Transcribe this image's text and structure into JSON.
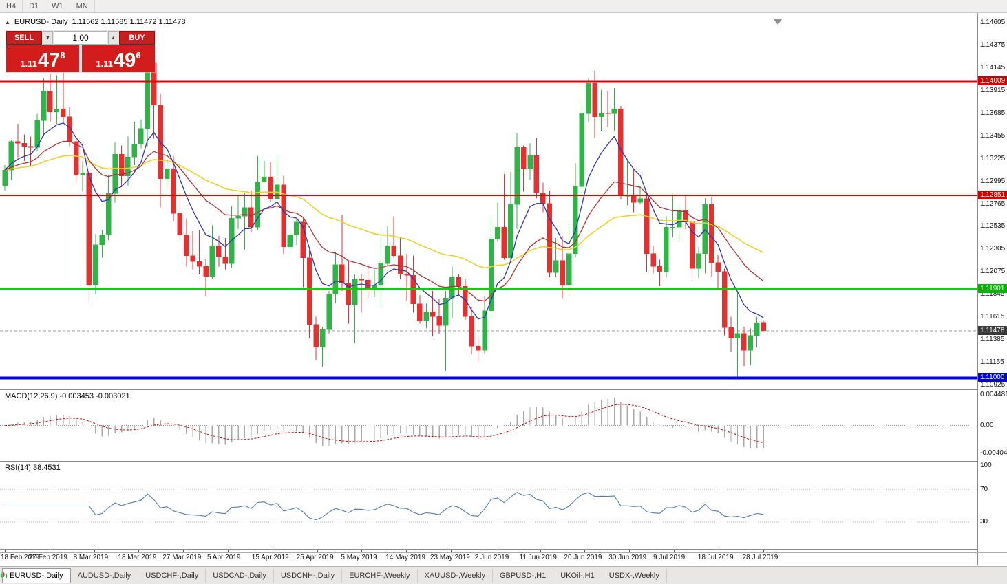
{
  "window": {
    "period_tabs": [
      "H4",
      "D1",
      "W1",
      "MN"
    ]
  },
  "header": {
    "marker": "▲",
    "symbol_label": "EURUSD-,Daily",
    "ohlc_text": "1.11562 1.11585 1.11472 1.11478"
  },
  "trade_panel": {
    "sell_label": "SELL",
    "buy_label": "BUY",
    "volume": "1.00",
    "down_arrow": "▼",
    "up_arrow": "▲",
    "sell_price": {
      "prefix": "1.11",
      "big": "47",
      "sup": "8"
    },
    "buy_price": {
      "prefix": "1.11",
      "big": "49",
      "sup": "6"
    }
  },
  "chart_data": {
    "type": "candlestick",
    "title": "EURUSD-,Daily",
    "x_labels": [
      "18 Feb 2019",
      "27 Feb 2019",
      "8 Mar 2019",
      "18 Mar 2019",
      "27 Mar 2019",
      "5 Apr 2019",
      "15 Apr 2019",
      "25 Apr 2019",
      "5 May 2019",
      "14 May 2019",
      "23 May 2019",
      "2 Jun 2019",
      "11 Jun 2019",
      "20 Jun 2019",
      "30 Jun 2019",
      "9 Jul 2019",
      "18 Jul 2019",
      "28 Jul 2019"
    ],
    "y_axis": {
      "labels": [
        "1.14605",
        "1.14375",
        "1.14145",
        "1.13915",
        "1.13685",
        "1.13455",
        "1.13225",
        "1.12995",
        "1.12765",
        "1.12535",
        "1.12305",
        "1.12075",
        "1.11845",
        "1.11615",
        "1.11385",
        "1.11155",
        "1.10925"
      ],
      "top_price": 1.14605,
      "bottom_price": 1.10925
    },
    "colors": {
      "up": "#2fb547",
      "down": "#e53030",
      "background": "#ffffff"
    },
    "candles": [
      [
        1.1295,
        1.1316,
        1.129,
        1.1311
      ],
      [
        1.1311,
        1.1341,
        1.1301,
        1.134
      ],
      [
        1.134,
        1.1358,
        1.1324,
        1.1338
      ],
      [
        1.1338,
        1.1347,
        1.132,
        1.1335
      ],
      [
        1.1335,
        1.1345,
        1.1315,
        1.1334
      ],
      [
        1.1334,
        1.1368,
        1.133,
        1.1361
      ],
      [
        1.1361,
        1.1404,
        1.1345,
        1.1391
      ],
      [
        1.1391,
        1.1408,
        1.136,
        1.137
      ],
      [
        1.137,
        1.1407,
        1.1358,
        1.1373
      ],
      [
        1.1373,
        1.1411,
        1.1358,
        1.1365
      ],
      [
        1.1365,
        1.1375,
        1.1335,
        1.134
      ],
      [
        1.134,
        1.1344,
        1.1298,
        1.1306
      ],
      [
        1.1306,
        1.132,
        1.1289,
        1.1308
      ],
      [
        1.1308,
        1.132,
        1.1176,
        1.1194
      ],
      [
        1.1194,
        1.1246,
        1.1185,
        1.1235
      ],
      [
        1.1235,
        1.125,
        1.1222,
        1.1245
      ],
      [
        1.1245,
        1.1306,
        1.124,
        1.1287
      ],
      [
        1.1287,
        1.1339,
        1.1278,
        1.1327
      ],
      [
        1.1327,
        1.1336,
        1.1294,
        1.1305
      ],
      [
        1.1305,
        1.1345,
        1.1295,
        1.1324
      ],
      [
        1.1324,
        1.136,
        1.1316,
        1.1337
      ],
      [
        1.1337,
        1.1362,
        1.1333,
        1.1353
      ],
      [
        1.1353,
        1.1448,
        1.1335,
        1.142
      ],
      [
        1.142,
        1.1438,
        1.1343,
        1.1377
      ],
      [
        1.1377,
        1.1389,
        1.1273,
        1.1302
      ],
      [
        1.1302,
        1.133,
        1.1293,
        1.1312
      ],
      [
        1.1312,
        1.1325,
        1.1259,
        1.1267
      ],
      [
        1.1267,
        1.1288,
        1.1241,
        1.1245
      ],
      [
        1.1245,
        1.1262,
        1.1213,
        1.1224
      ],
      [
        1.1224,
        1.1249,
        1.121,
        1.1218
      ],
      [
        1.1218,
        1.125,
        1.1205,
        1.1213
      ],
      [
        1.1213,
        1.1221,
        1.1183,
        1.1203
      ],
      [
        1.1203,
        1.1255,
        1.12,
        1.1234
      ],
      [
        1.1234,
        1.1244,
        1.1213,
        1.1223
      ],
      [
        1.1223,
        1.1242,
        1.121,
        1.1216
      ],
      [
        1.1216,
        1.1274,
        1.1212,
        1.1262
      ],
      [
        1.1262,
        1.1285,
        1.1251,
        1.1264
      ],
      [
        1.1264,
        1.1288,
        1.123,
        1.1273
      ],
      [
        1.1273,
        1.129,
        1.1248,
        1.1253
      ],
      [
        1.1253,
        1.1325,
        1.125,
        1.1299
      ],
      [
        1.1299,
        1.132,
        1.1298,
        1.1304
      ],
      [
        1.1304,
        1.1319,
        1.1279,
        1.1282
      ],
      [
        1.1282,
        1.1324,
        1.128,
        1.1296
      ],
      [
        1.1296,
        1.1305,
        1.1226,
        1.1233
      ],
      [
        1.1233,
        1.1252,
        1.1226,
        1.1245
      ],
      [
        1.1245,
        1.1262,
        1.1235,
        1.1258
      ],
      [
        1.1258,
        1.1262,
        1.1192,
        1.1222
      ],
      [
        1.1222,
        1.123,
        1.114,
        1.1154
      ],
      [
        1.1154,
        1.1162,
        1.1118,
        1.1131
      ],
      [
        1.1131,
        1.1152,
        1.1111,
        1.1149
      ],
      [
        1.1149,
        1.1188,
        1.1145,
        1.1185
      ],
      [
        1.1185,
        1.1228,
        1.1176,
        1.1215
      ],
      [
        1.1215,
        1.1265,
        1.1188,
        1.1196
      ],
      [
        1.1196,
        1.1219,
        1.1155,
        1.1174
      ],
      [
        1.1174,
        1.1205,
        1.1135,
        1.12
      ],
      [
        1.12,
        1.1205,
        1.1166,
        1.1199
      ],
      [
        1.1199,
        1.1215,
        1.118,
        1.119
      ],
      [
        1.119,
        1.121,
        1.1182,
        1.1194
      ],
      [
        1.1194,
        1.1251,
        1.1174,
        1.1216
      ],
      [
        1.1216,
        1.1254,
        1.1214,
        1.1234
      ],
      [
        1.1234,
        1.1264,
        1.1222,
        1.1224
      ],
      [
        1.1224,
        1.1243,
        1.12,
        1.1205
      ],
      [
        1.1205,
        1.1226,
        1.1178,
        1.1204
      ],
      [
        1.1204,
        1.1224,
        1.1166,
        1.1175
      ],
      [
        1.1175,
        1.1184,
        1.1155,
        1.1158
      ],
      [
        1.1158,
        1.1176,
        1.115,
        1.1167
      ],
      [
        1.1167,
        1.1188,
        1.1142,
        1.1162
      ],
      [
        1.1162,
        1.118,
        1.1145,
        1.1153
      ],
      [
        1.1153,
        1.1188,
        1.1107,
        1.1181
      ],
      [
        1.1181,
        1.1213,
        1.1161,
        1.1202
      ],
      [
        1.1202,
        1.1205,
        1.1184,
        1.1193
      ],
      [
        1.1193,
        1.12,
        1.1159,
        1.1162
      ],
      [
        1.1162,
        1.1172,
        1.1124,
        1.1132
      ],
      [
        1.1132,
        1.1142,
        1.1116,
        1.1128
      ],
      [
        1.1128,
        1.1183,
        1.1125,
        1.1168
      ],
      [
        1.1168,
        1.1263,
        1.116,
        1.1241
      ],
      [
        1.1241,
        1.1278,
        1.1238,
        1.1253
      ],
      [
        1.1253,
        1.1307,
        1.122,
        1.1222
      ],
      [
        1.1222,
        1.1309,
        1.1219,
        1.1276
      ],
      [
        1.1276,
        1.1348,
        1.1251,
        1.1334
      ],
      [
        1.1334,
        1.1336,
        1.1289,
        1.1312
      ],
      [
        1.1312,
        1.1338,
        1.1301,
        1.1326
      ],
      [
        1.1326,
        1.1344,
        1.1282,
        1.1288
      ],
      [
        1.1288,
        1.1298,
        1.1268,
        1.1277
      ],
      [
        1.1277,
        1.129,
        1.1202,
        1.1207
      ],
      [
        1.1207,
        1.1242,
        1.1202,
        1.1219
      ],
      [
        1.1219,
        1.1244,
        1.1181,
        1.1194
      ],
      [
        1.1194,
        1.1256,
        1.1187,
        1.1226
      ],
      [
        1.1226,
        1.1318,
        1.1222,
        1.1294
      ],
      [
        1.1294,
        1.1378,
        1.1285,
        1.1368
      ],
      [
        1.1368,
        1.1404,
        1.136,
        1.1399
      ],
      [
        1.1399,
        1.1412,
        1.1344,
        1.1365
      ],
      [
        1.1365,
        1.1392,
        1.135,
        1.1369
      ],
      [
        1.1369,
        1.1391,
        1.1355,
        1.1368
      ],
      [
        1.1368,
        1.1394,
        1.1351,
        1.1373
      ],
      [
        1.1373,
        1.1376,
        1.1281,
        1.1285
      ],
      [
        1.1285,
        1.1322,
        1.1275,
        1.1285
      ],
      [
        1.1285,
        1.1312,
        1.1268,
        1.1278
      ],
      [
        1.1278,
        1.1295,
        1.1277,
        1.1282
      ],
      [
        1.1282,
        1.1288,
        1.1207,
        1.1226
      ],
      [
        1.1226,
        1.1234,
        1.1206,
        1.1213
      ],
      [
        1.1213,
        1.122,
        1.1193,
        1.1208
      ],
      [
        1.1208,
        1.1264,
        1.1202,
        1.1253
      ],
      [
        1.1253,
        1.1286,
        1.1243,
        1.1253
      ],
      [
        1.1253,
        1.1275,
        1.1239,
        1.127
      ],
      [
        1.127,
        1.1285,
        1.1251,
        1.1258
      ],
      [
        1.1258,
        1.1262,
        1.1202,
        1.1211
      ],
      [
        1.1211,
        1.1233,
        1.1201,
        1.1226
      ],
      [
        1.1226,
        1.1282,
        1.1206,
        1.1276
      ],
      [
        1.1276,
        1.1283,
        1.1203,
        1.1217
      ],
      [
        1.1217,
        1.1225,
        1.1189,
        1.1208
      ],
      [
        1.1208,
        1.1211,
        1.1143,
        1.1151
      ],
      [
        1.1151,
        1.1162,
        1.1126,
        1.114
      ],
      [
        1.114,
        1.1187,
        1.1101,
        1.1145
      ],
      [
        1.1145,
        1.1152,
        1.1112,
        1.1128
      ],
      [
        1.1128,
        1.115,
        1.1113,
        1.1143
      ],
      [
        1.1143,
        1.1162,
        1.1131,
        1.1156
      ],
      [
        1.11562,
        1.11585,
        1.11472,
        1.11478
      ]
    ],
    "hlines": [
      {
        "price": 1.14009,
        "label": "1.14009",
        "color": "#e60000",
        "badge_color": "#d00000",
        "width": 2
      },
      {
        "price": 1.12851,
        "label": "1.12851",
        "color": "#e60000",
        "badge_color": "#d00000",
        "width": 2
      },
      {
        "price": 1.11901,
        "label": "1.11901",
        "color": "#00d800",
        "badge_color": "#00b400",
        "width": 3
      },
      {
        "price": 1.11,
        "label": "1.11000",
        "color": "#0000f0",
        "badge_color": "#0000dd",
        "width": 4
      }
    ],
    "current_price": {
      "price": 1.11478,
      "label": "1.11478",
      "badge_color": "#3a3a3a",
      "line_color": "#9a9a9a"
    },
    "moving_averages": [
      {
        "period": 8,
        "color": "#2a35b0"
      },
      {
        "period": 20,
        "color": "#b03434"
      },
      {
        "period": 50,
        "color": "#f0d028"
      }
    ],
    "macd": {
      "label": "MACD(12,26,9) -0.003453 -0.003021",
      "fast": 12,
      "slow": 26,
      "signal": 9,
      "axis_labels": [
        "0.004481",
        "0.00",
        "-0.004048"
      ],
      "axis_max": 0.004481,
      "axis_min": -0.004048,
      "bar_color": "#a9a9a9",
      "signal_color": "#cc0000"
    },
    "rsi": {
      "label": "RSI(14) 38.4531",
      "period": 14,
      "levels": [
        70,
        30
      ],
      "axis_labels": [
        "100",
        "70",
        "30"
      ],
      "line_color": "#4a7ab5"
    }
  },
  "bottom_tabs": [
    {
      "label": "EURUSD-,Daily",
      "active": true
    },
    {
      "label": "AUDUSD-,Daily"
    },
    {
      "label": "USDCHF-,Daily"
    },
    {
      "label": "USDCAD-,Daily"
    },
    {
      "label": "USDCNH-,Daily"
    },
    {
      "label": "EURCHF-,Weekly"
    },
    {
      "label": "XAUUSD-,Weekly"
    },
    {
      "label": "GBPUSD-,H1"
    },
    {
      "label": "UKOil-,H1"
    },
    {
      "label": "USDX-,Weekly"
    }
  ]
}
